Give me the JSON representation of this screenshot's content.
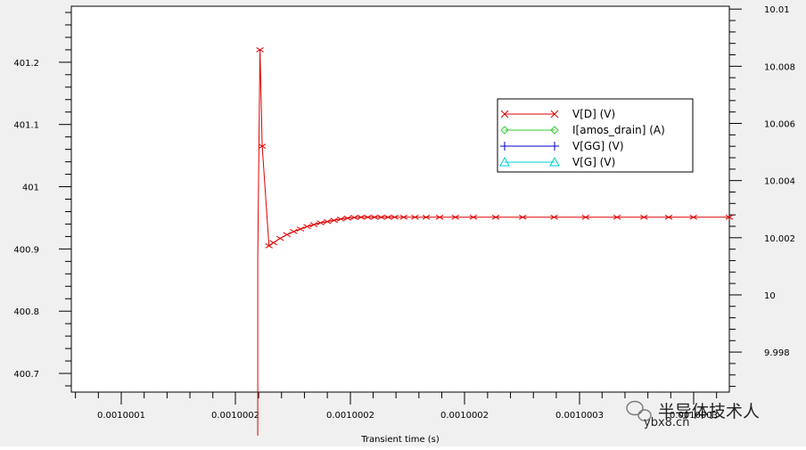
{
  "chart_data": {
    "type": "line",
    "xlabel": "Transient time (s)",
    "x_tick_labels": [
      "0.0010001",
      "0.0010002",
      "0.0010002",
      "0.0010002",
      "0.0010003",
      "0.0010003"
    ],
    "y_left_ticks": [
      400.7,
      400.8,
      400.9,
      401,
      401.1,
      401.2
    ],
    "y_left_tick_labels": [
      "400.7",
      "400.8",
      "400.9",
      "401",
      "401.1",
      "401.2"
    ],
    "y_left_range": [
      400.67,
      401.29
    ],
    "y_right_ticks": [
      9.998,
      10,
      10.002,
      10.004,
      10.006,
      10.008,
      10.01
    ],
    "y_right_tick_labels": [
      "9.998",
      "10",
      "10.002",
      "10.004",
      "10.006",
      "10.008",
      "10.01"
    ],
    "y_right_range": [
      9.9966,
      10.0101
    ],
    "x_range": [
      0.001000055,
      0.001000348
    ],
    "legend_position": "top-right",
    "grid": false,
    "series": [
      {
        "name": "V[D] (V)",
        "color": "#e00000",
        "marker": "x",
        "points": [
          [
            0.001000138,
            400.6
          ],
          [
            0.001000138,
            400.89
          ],
          [
            0.001000139,
            401.22
          ],
          [
            0.00100014,
            401.065
          ],
          [
            0.001000143,
            400.905
          ],
          [
            0.001000145,
            400.91
          ],
          [
            0.001000148,
            400.917
          ],
          [
            0.001000151,
            400.923
          ],
          [
            0.001000154,
            400.928
          ],
          [
            0.001000157,
            400.932
          ],
          [
            0.00100016,
            400.936
          ],
          [
            0.001000163,
            400.939
          ],
          [
            0.001000166,
            400.942
          ],
          [
            0.001000169,
            400.944
          ],
          [
            0.001000172,
            400.946
          ],
          [
            0.001000175,
            400.948
          ],
          [
            0.001000178,
            400.9495
          ],
          [
            0.001000181,
            400.9505
          ],
          [
            0.001000184,
            400.951
          ],
          [
            0.001000187,
            400.951
          ],
          [
            0.00100019,
            400.951
          ],
          [
            0.001000193,
            400.951
          ],
          [
            0.001000196,
            400.951
          ],
          [
            0.001000199,
            400.951
          ],
          [
            0.001000203,
            400.951
          ],
          [
            0.001000208,
            400.951
          ],
          [
            0.001000213,
            400.951
          ],
          [
            0.001000219,
            400.951
          ],
          [
            0.001000226,
            400.951
          ],
          [
            0.001000234,
            400.951
          ],
          [
            0.001000244,
            400.951
          ],
          [
            0.001000256,
            400.951
          ],
          [
            0.00100027,
            400.951
          ],
          [
            0.001000284,
            400.951
          ],
          [
            0.001000298,
            400.951
          ],
          [
            0.00100031,
            400.951
          ],
          [
            0.001000321,
            400.951
          ],
          [
            0.001000332,
            400.951
          ],
          [
            0.001000348,
            400.951
          ]
        ]
      },
      {
        "name": "I[amos_drain] (A)",
        "color": "#33cc33",
        "marker": "diamond",
        "points": []
      },
      {
        "name": "V[GG] (V)",
        "color": "#0000cc",
        "marker": "plus",
        "points": []
      },
      {
        "name": "V[G] (V)",
        "color": "#00cccc",
        "marker": "triangle",
        "points": []
      }
    ]
  },
  "watermark": {
    "title": "半导体技术人",
    "site": "ybx8.cn"
  }
}
